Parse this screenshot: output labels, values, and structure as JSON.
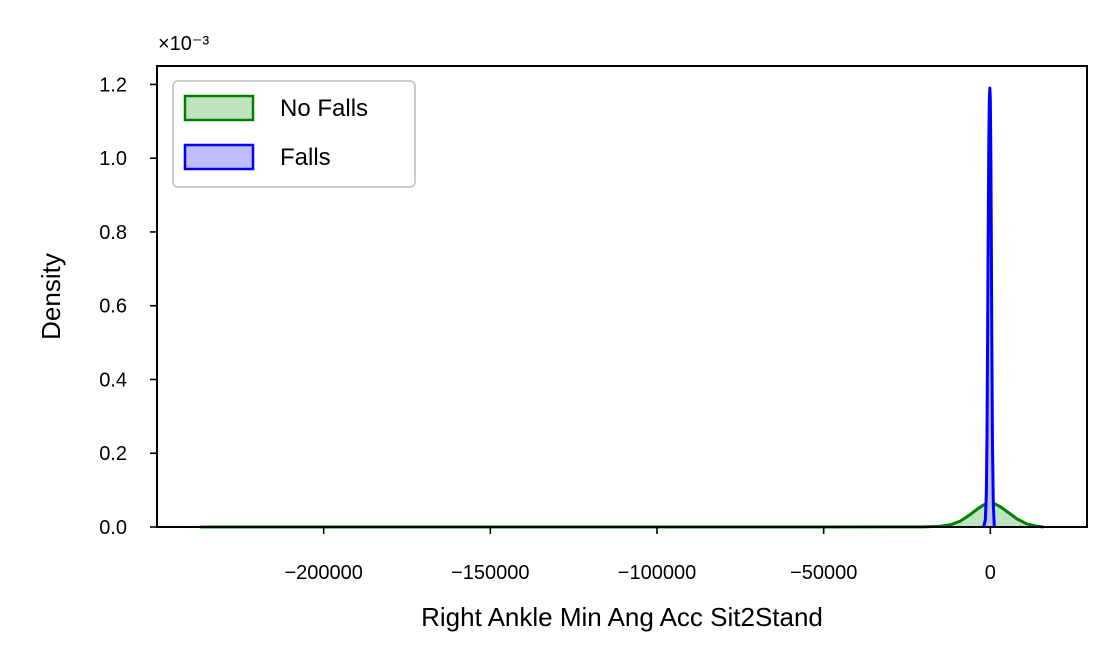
{
  "chart_data": {
    "type": "area",
    "title": "",
    "xlabel": "Right Ankle Min Ang Acc Sit2Stand",
    "ylabel": "Density",
    "y_offset_label": "×10⁻³",
    "xlim": [
      -250000,
      29000
    ],
    "ylim": [
      0,
      1.25
    ],
    "x_ticks": [
      -200000,
      -150000,
      -100000,
      -50000,
      0
    ],
    "x_tick_labels": [
      "−200000",
      "−150000",
      "−100000",
      "−50000",
      "0"
    ],
    "y_ticks": [
      0,
      0.2,
      0.4,
      0.6,
      0.8,
      1.0,
      1.2
    ],
    "y_tick_labels": [
      "0.0",
      "0.2",
      "0.4",
      "0.6",
      "0.8",
      "1.0",
      "1.2"
    ],
    "grid": false,
    "legend_position": "top-left",
    "series": [
      {
        "name": "No Falls",
        "color": "#008000",
        "fill": "#bfe3bf",
        "x": [
          -237000,
          -200000,
          -150000,
          -100000,
          -50000,
          -20000,
          -15000,
          -12000,
          -9000,
          -6000,
          -4000,
          -2000,
          -500,
          0,
          1000,
          3000,
          5000,
          8000,
          11000,
          14000,
          16000
        ],
        "y": [
          0.0,
          0.0,
          0.0,
          0.0,
          0.0,
          0.0005,
          0.002,
          0.006,
          0.016,
          0.034,
          0.048,
          0.06,
          0.065,
          0.066,
          0.064,
          0.055,
          0.042,
          0.022,
          0.008,
          0.002,
          0.0
        ]
      },
      {
        "name": "Falls",
        "color": "#0000ff",
        "fill": "#bfbfff",
        "x": [
          -2000,
          -1500,
          -1200,
          -1000,
          -800,
          -600,
          -450,
          -300,
          -150,
          0,
          150,
          300,
          450,
          650,
          900,
          1200
        ],
        "y": [
          0.0,
          0.02,
          0.09,
          0.25,
          0.55,
          0.85,
          1.05,
          1.16,
          1.19,
          1.16,
          1.02,
          0.78,
          0.5,
          0.22,
          0.06,
          0.0
        ]
      }
    ]
  }
}
